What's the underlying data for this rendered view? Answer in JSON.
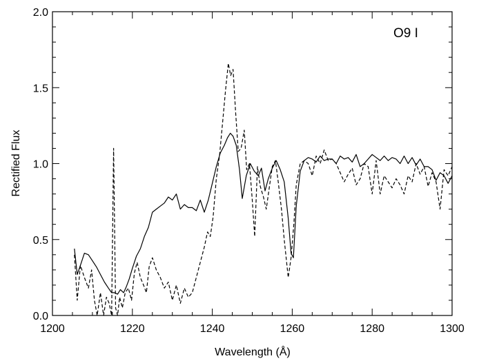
{
  "chart_data": {
    "type": "line",
    "title": "",
    "xlabel": "Wavelength (Å)",
    "ylabel": "Rectified Flux",
    "xlim": [
      1200,
      1300
    ],
    "ylim": [
      0,
      2
    ],
    "x_ticks": [
      1200,
      1220,
      1240,
      1260,
      1280,
      1300
    ],
    "x_tick_labels": [
      "1200",
      "1220",
      "1240",
      "1260",
      "1280",
      "1300"
    ],
    "y_ticks": [
      0,
      0.5,
      1,
      1.5,
      2
    ],
    "y_tick_labels": [
      "0.0",
      "0.5",
      "1.0",
      "1.5",
      "2.0"
    ],
    "annotation": "O9 I",
    "grid": false,
    "legend": "none",
    "series": [
      {
        "style": "solid",
        "color": "#000000",
        "x": [
          1205.5,
          1206.2,
          1207.0,
          1208.0,
          1209.0,
          1210.0,
          1211.0,
          1212.0,
          1213.0,
          1214.0,
          1214.8,
          1215.5,
          1216.3,
          1217.0,
          1217.8,
          1218.5,
          1219.2,
          1220.0,
          1221.0,
          1222.0,
          1223.0,
          1224.0,
          1225.0,
          1226.0,
          1227.0,
          1228.0,
          1229.0,
          1230.0,
          1231.0,
          1232.0,
          1233.0,
          1234.0,
          1235.0,
          1236.0,
          1237.0,
          1238.0,
          1239.0,
          1240.0,
          1241.0,
          1242.0,
          1243.0,
          1243.8,
          1244.5,
          1245.2,
          1246.0,
          1246.8,
          1247.5,
          1248.5,
          1249.5,
          1250.5,
          1251.5,
          1252.3,
          1253.2,
          1254.0,
          1255.0,
          1256.0,
          1257.0,
          1258.0,
          1259.0,
          1259.7,
          1260.3,
          1261.0,
          1262.0,
          1263.0,
          1264.0,
          1265.0,
          1266.0,
          1267.0,
          1268.0,
          1269.0,
          1270.0,
          1271.0,
          1272.0,
          1273.0,
          1274.0,
          1275.0,
          1276.0,
          1277.0,
          1278.0,
          1279.0,
          1280.0,
          1281.0,
          1282.0,
          1283.0,
          1284.0,
          1285.0,
          1286.0,
          1287.0,
          1288.0,
          1289.0,
          1290.0,
          1291.0,
          1292.0,
          1293.0,
          1294.0,
          1295.0,
          1296.0,
          1297.0,
          1298.0,
          1299.0,
          1300.0
        ],
        "y": [
          0.44,
          0.27,
          0.33,
          0.41,
          0.4,
          0.36,
          0.32,
          0.27,
          0.22,
          0.18,
          0.15,
          0.15,
          0.14,
          0.17,
          0.15,
          0.19,
          0.24,
          0.31,
          0.39,
          0.44,
          0.52,
          0.58,
          0.68,
          0.7,
          0.72,
          0.74,
          0.78,
          0.76,
          0.8,
          0.7,
          0.73,
          0.71,
          0.71,
          0.69,
          0.76,
          0.68,
          0.76,
          0.87,
          0.98,
          1.07,
          1.12,
          1.17,
          1.2,
          1.18,
          1.12,
          0.96,
          0.77,
          0.92,
          1.0,
          0.95,
          0.92,
          0.97,
          0.82,
          0.9,
          0.97,
          1.02,
          0.96,
          0.88,
          0.64,
          0.41,
          0.38,
          0.72,
          0.95,
          1.02,
          1.04,
          1.03,
          1.01,
          1.05,
          1.02,
          1.03,
          1.03,
          1.0,
          1.05,
          1.03,
          1.04,
          1.01,
          1.06,
          0.98,
          1.0,
          1.03,
          1.06,
          1.04,
          1.02,
          1.05,
          1.02,
          1.04,
          1.03,
          1.0,
          1.05,
          1.0,
          1.04,
          0.99,
          1.03,
          0.98,
          0.98,
          0.96,
          0.89,
          0.94,
          0.92,
          0.87,
          0.92
        ]
      },
      {
        "style": "dashed",
        "color": "#000000",
        "x": [
          1205.5,
          1206.2,
          1207.0,
          1208.0,
          1209.0,
          1209.8,
          1210.5,
          1211.2,
          1212.0,
          1212.8,
          1213.5,
          1214.2,
          1214.8,
          1215.3,
          1215.8,
          1216.3,
          1216.8,
          1217.5,
          1218.2,
          1219.0,
          1219.8,
          1220.5,
          1221.2,
          1222.0,
          1222.8,
          1223.5,
          1224.2,
          1225.0,
          1226.0,
          1227.0,
          1228.0,
          1229.0,
          1230.0,
          1231.0,
          1232.0,
          1233.0,
          1234.0,
          1235.0,
          1236.0,
          1237.0,
          1238.0,
          1238.8,
          1239.5,
          1240.2,
          1241.0,
          1241.8,
          1242.5,
          1243.3,
          1244.0,
          1244.6,
          1245.2,
          1245.8,
          1246.5,
          1247.2,
          1248.0,
          1248.6,
          1249.3,
          1250.0,
          1250.6,
          1251.3,
          1252.0,
          1252.8,
          1253.5,
          1254.3,
          1255.0,
          1255.8,
          1256.5,
          1257.3,
          1258.0,
          1259.0,
          1259.7,
          1260.4,
          1261.0,
          1262.0,
          1263.0,
          1264.0,
          1265.0,
          1266.0,
          1267.0,
          1268.0,
          1269.0,
          1270.0,
          1271.0,
          1272.0,
          1273.0,
          1274.0,
          1275.0,
          1276.0,
          1277.0,
          1278.0,
          1279.0,
          1280.0,
          1281.0,
          1282.0,
          1283.0,
          1284.0,
          1285.0,
          1286.0,
          1287.0,
          1288.0,
          1289.0,
          1290.0,
          1291.0,
          1292.0,
          1293.0,
          1294.0,
          1295.0,
          1296.0,
          1297.0,
          1298.0,
          1299.0,
          1300.0
        ],
        "y": [
          0.4,
          0.1,
          0.33,
          0.25,
          0.18,
          0.3,
          0.1,
          0.0,
          0.15,
          0.0,
          0.12,
          0.08,
          0.0,
          1.1,
          0.05,
          0.0,
          0.12,
          0.05,
          0.15,
          0.18,
          0.1,
          0.28,
          0.35,
          0.25,
          0.2,
          0.15,
          0.32,
          0.38,
          0.3,
          0.25,
          0.18,
          0.22,
          0.1,
          0.2,
          0.08,
          0.18,
          0.12,
          0.15,
          0.25,
          0.35,
          0.45,
          0.55,
          0.52,
          0.65,
          0.9,
          1.05,
          1.25,
          1.48,
          1.66,
          1.58,
          1.62,
          1.35,
          1.08,
          1.1,
          1.22,
          0.96,
          1.0,
          0.76,
          0.52,
          0.98,
          0.85,
          0.78,
          0.7,
          0.85,
          0.98,
          1.02,
          0.88,
          0.7,
          0.5,
          0.25,
          0.38,
          0.6,
          0.86,
          1.0,
          1.02,
          1.0,
          0.92,
          1.05,
          1.0,
          1.09,
          1.02,
          1.03,
          1.0,
          0.94,
          0.88,
          0.93,
          0.97,
          0.86,
          0.9,
          1.0,
          0.98,
          0.8,
          1.02,
          0.8,
          0.92,
          0.88,
          0.84,
          0.9,
          0.86,
          0.8,
          0.92,
          0.88,
          1.0,
          0.93,
          0.98,
          0.85,
          0.94,
          0.88,
          0.7,
          0.96,
          0.92,
          0.98
        ]
      }
    ]
  }
}
